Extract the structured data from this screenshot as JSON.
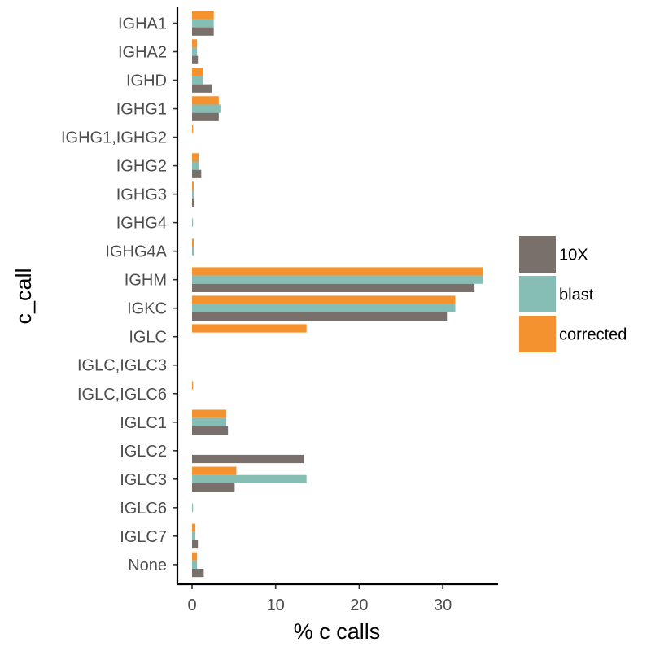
{
  "chart_data": {
    "type": "bar",
    "orientation": "horizontal",
    "xlabel": "% c calls",
    "ylabel": "c_call",
    "xlim": [
      -1.7,
      36.7
    ],
    "xticks": [
      0,
      10,
      20,
      30
    ],
    "grid": false,
    "legend_position": "right",
    "categories": [
      "IGHA1",
      "IGHA2",
      "IGHD",
      "IGHG1",
      "IGHG1,IGHG2",
      "IGHG2",
      "IGHG3",
      "IGHG4",
      "IGHG4A",
      "IGHM",
      "IGKC",
      "IGLC",
      "IGLC,IGLC3",
      "IGLC,IGLC6",
      "IGLC1",
      "IGLC2",
      "IGLC3",
      "IGLC6",
      "IGLC7",
      "None"
    ],
    "series": [
      {
        "name": "10X",
        "color": "#7a706b",
        "values": [
          2.6,
          0.7,
          2.4,
          3.2,
          0,
          1.1,
          0.3,
          0,
          0,
          33.8,
          30.5,
          0,
          0,
          0,
          4.3,
          13.4,
          5.1,
          0,
          0.7,
          1.4
        ]
      },
      {
        "name": "blast",
        "color": "#86bdb5",
        "values": [
          2.6,
          0.6,
          1.3,
          3.4,
          0,
          0.8,
          0.2,
          0.1,
          0.2,
          34.8,
          31.5,
          0,
          0,
          0,
          4.1,
          0,
          13.7,
          0.1,
          0.4,
          0.6
        ]
      },
      {
        "name": "corrected",
        "color": "#f3922e",
        "values": [
          2.6,
          0.6,
          1.3,
          3.2,
          0.1,
          0.8,
          0.2,
          0,
          0.2,
          34.8,
          31.5,
          13.7,
          0,
          0.1,
          4.1,
          0,
          5.3,
          0,
          0.4,
          0.6
        ]
      }
    ]
  }
}
